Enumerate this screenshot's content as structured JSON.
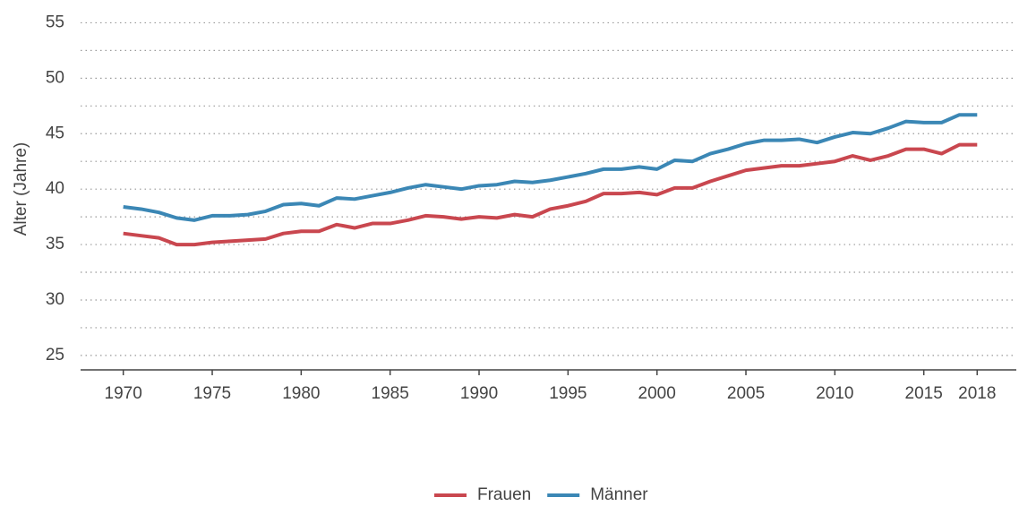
{
  "chart_data": {
    "type": "line",
    "y_label": "Alter (Jahre)",
    "x": [
      1970,
      1971,
      1972,
      1973,
      1974,
      1975,
      1976,
      1977,
      1978,
      1979,
      1980,
      1981,
      1982,
      1983,
      1984,
      1985,
      1986,
      1987,
      1988,
      1989,
      1990,
      1991,
      1992,
      1993,
      1994,
      1995,
      1996,
      1997,
      1998,
      1999,
      2000,
      2001,
      2002,
      2003,
      2004,
      2005,
      2006,
      2007,
      2008,
      2009,
      2010,
      2011,
      2012,
      2013,
      2014,
      2015,
      2016,
      2017,
      2018
    ],
    "series": [
      {
        "name": "Frauen",
        "color": "#c9474f",
        "values": [
          36.0,
          35.8,
          35.6,
          35.0,
          35.0,
          35.2,
          35.3,
          35.4,
          35.5,
          36.0,
          36.2,
          36.2,
          36.8,
          36.5,
          36.9,
          36.9,
          37.2,
          37.6,
          37.5,
          37.3,
          37.5,
          37.4,
          37.7,
          37.5,
          38.2,
          38.5,
          38.9,
          39.6,
          39.6,
          39.7,
          39.5,
          40.1,
          40.1,
          40.7,
          41.2,
          41.7,
          41.9,
          42.1,
          42.1,
          42.3,
          42.5,
          43.0,
          42.6,
          43.0,
          43.6,
          43.6,
          43.2,
          44.0,
          44.0
        ]
      },
      {
        "name": "Männer",
        "color": "#3b87b5",
        "values": [
          38.4,
          38.2,
          37.9,
          37.4,
          37.2,
          37.6,
          37.6,
          37.7,
          38.0,
          38.6,
          38.7,
          38.5,
          39.2,
          39.1,
          39.4,
          39.7,
          40.1,
          40.4,
          40.2,
          40.0,
          40.3,
          40.4,
          40.7,
          40.6,
          40.8,
          41.1,
          41.4,
          41.8,
          41.8,
          42.0,
          41.8,
          42.6,
          42.5,
          43.2,
          43.6,
          44.1,
          44.4,
          44.4,
          44.5,
          44.2,
          44.7,
          45.1,
          45.0,
          45.5,
          46.1,
          46.0,
          46.0,
          46.7,
          46.7
        ]
      }
    ],
    "xlim": [
      1967.6,
      2020.2
    ],
    "xticks": [
      1970,
      1975,
      1980,
      1985,
      1990,
      1995,
      2000,
      2005,
      2010,
      2015,
      2018
    ],
    "ylim": [
      23.7,
      55.6
    ],
    "yticks": [
      25,
      30,
      35,
      40,
      45,
      50,
      55
    ],
    "y_minor_grid": [
      27.5,
      32.5,
      37.5,
      42.5,
      47.5,
      52.5
    ],
    "grid": true,
    "legend_position": "bottom"
  }
}
